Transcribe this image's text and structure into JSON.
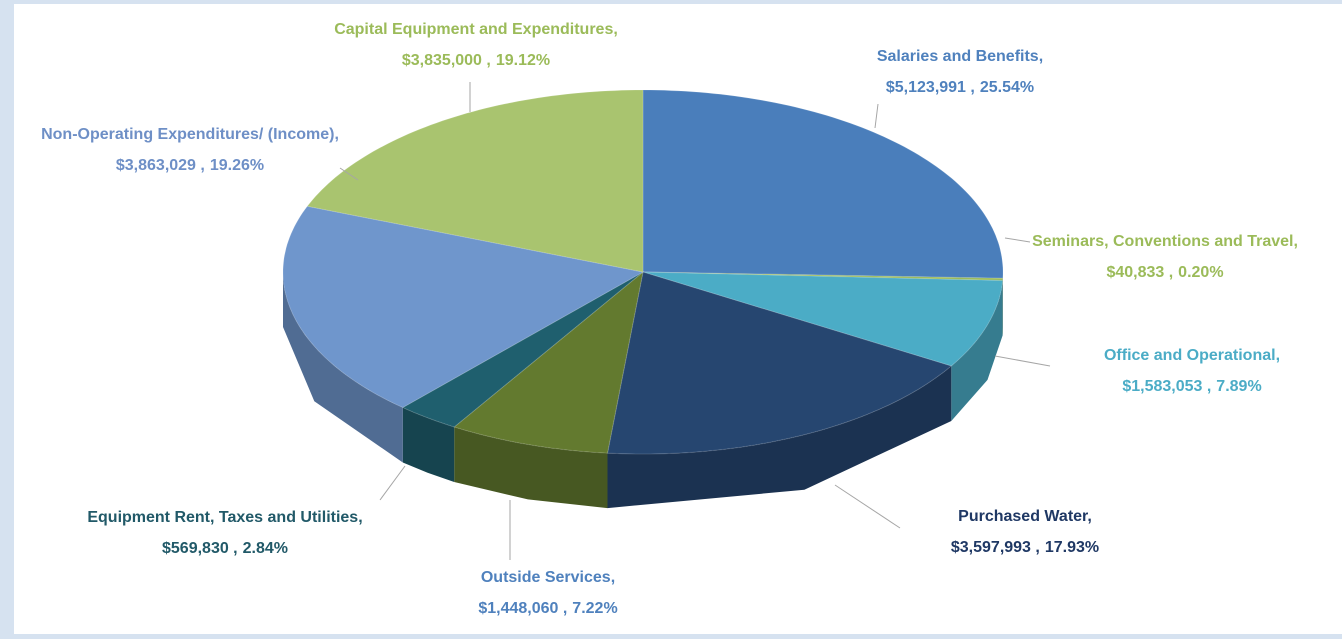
{
  "chart_data": {
    "type": "pie3d",
    "categories": [
      "Salaries and Benefits,",
      "Seminars, Conventions and Travel,",
      "Office and Operational,",
      "Purchased Water,",
      "Outside Services,",
      "Equipment Rent, Taxes and Utilities,",
      "Non-Operating Expenditures/ (Income),",
      "Capital Equipment and Expenditures,"
    ],
    "values": [
      5123991,
      40833,
      1583053,
      3597993,
      1448060,
      569830,
      3863029,
      3835000
    ],
    "value_labels": [
      "$5,123,991 ,",
      "$40,833 ,",
      "$1,583,053 ,",
      "$3,597,993 ,",
      "$1,448,060 ,",
      "$569,830 ,",
      "$3,863,029 ,",
      "$3,835,000 ,"
    ],
    "percents": [
      25.54,
      0.2,
      7.89,
      17.93,
      7.22,
      2.84,
      19.26,
      19.12
    ],
    "percent_labels": [
      "25.54%",
      "0.20%",
      "7.89%",
      "17.93%",
      "7.22%",
      "2.84%",
      "19.26%",
      "19.12%"
    ],
    "colors": [
      "#4a7ebb",
      "#9bbb59",
      "#4bacc6",
      "#264670",
      "#637a2f",
      "#1f5f6e",
      "#6f96cc",
      "#a9c46f"
    ],
    "label_colors": [
      "#4f81bd",
      "#9bbb59",
      "#4bacc6",
      "#1f3864",
      "#4f81bd",
      "#215968",
      "#6e8fc6",
      "#9bbb59"
    ]
  }
}
